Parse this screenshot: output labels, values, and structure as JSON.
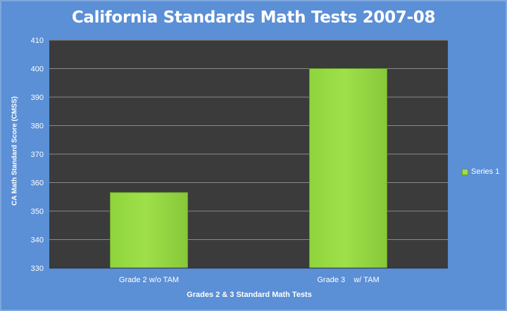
{
  "chart_data": {
    "type": "bar",
    "title": "California Standards Math Tests 2007-08",
    "xlabel": "Grades 2 & 3 Standard Math Tests",
    "ylabel": "CA Math Standard Score (CMSS)",
    "categories": [
      "Grade 2 w/o TAM",
      "Grade 3    w/ TAM"
    ],
    "series": [
      {
        "name": "Series 1",
        "values": [
          356.5,
          400
        ]
      }
    ],
    "ylim": [
      330,
      410
    ],
    "yticks": [
      330,
      340,
      350,
      360,
      370,
      380,
      390,
      400,
      410
    ],
    "grid": true,
    "legend": "right",
    "colors": {
      "background": "#5b8fd6",
      "plot_area": "#3b3b3b",
      "bar": "#9fe04a",
      "bar_edge": "#6aa02a",
      "gridline": "#8a8a8a"
    }
  }
}
